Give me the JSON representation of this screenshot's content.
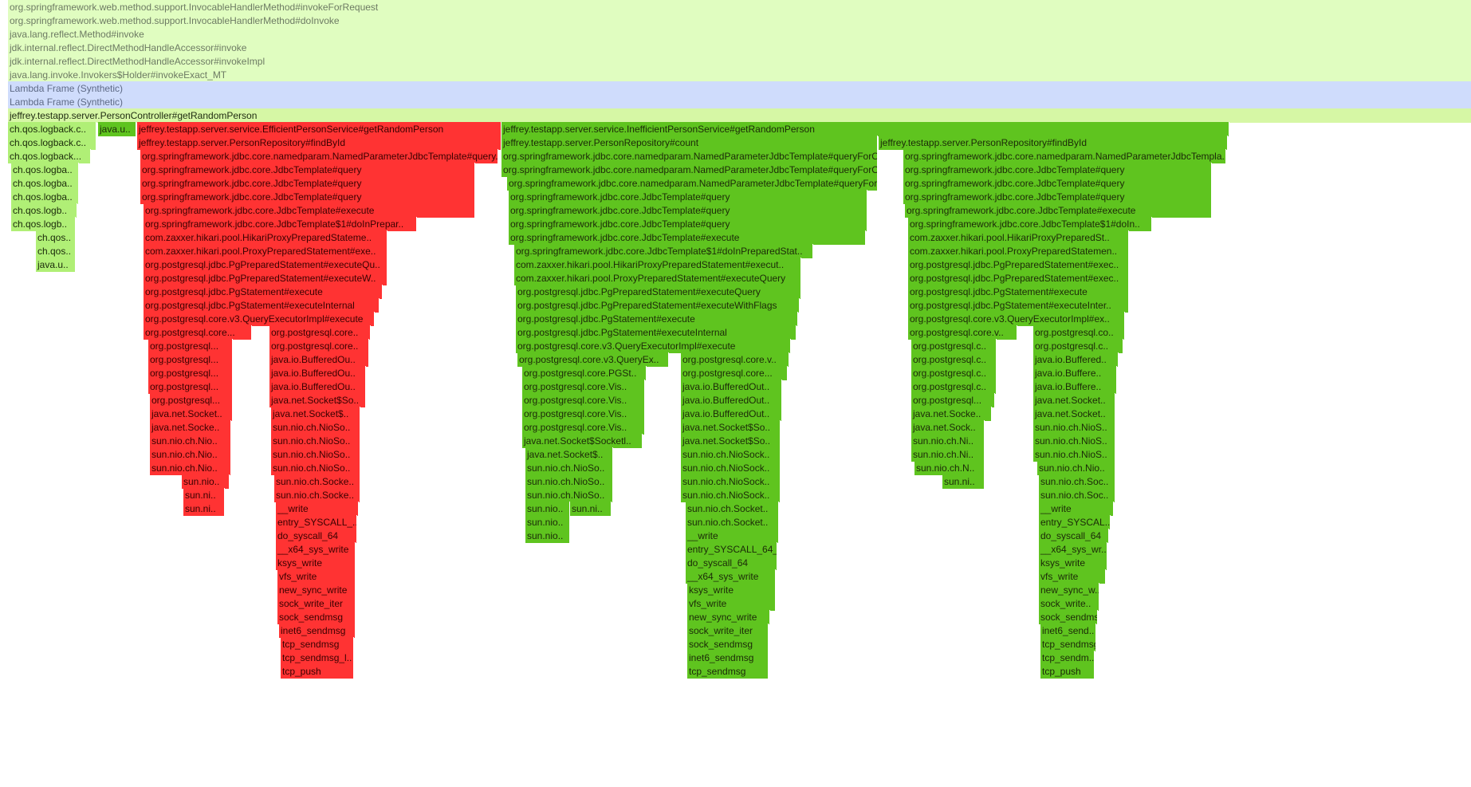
{
  "colors": {
    "background": "#ffffff",
    "filtered": "#e0fdc0",
    "synthetic": "#cfdcfc",
    "controller": "#d6f7a5",
    "logback": "#b0ef76",
    "inefficient_path": "#5fc41f",
    "efficient_path": "#ff3333"
  },
  "frames": [
    {
      "text": "org.springframework.web.method.support.InvocableHandlerMethod#invokeForRequest",
      "c": "light"
    },
    {
      "text": "org.springframework.web.method.support.InvocableHandlerMethod#doInvoke",
      "c": "light"
    },
    {
      "text": "java.lang.reflect.Method#invoke",
      "c": "light"
    },
    {
      "text": "jdk.internal.reflect.DirectMethodHandleAccessor#invoke",
      "c": "light"
    },
    {
      "text": "jdk.internal.reflect.DirectMethodHandleAccessor#invokeImpl",
      "c": "light"
    },
    {
      "text": "java.lang.invoke.Invokers$Holder#invokeExact_MT",
      "c": "light"
    },
    {
      "text": "Lambda Frame (Synthetic)",
      "c": "blue"
    },
    {
      "text": "Lambda Frame (Synthetic)",
      "c": "blue"
    },
    {
      "text": "jeffrey.testapp.server.PersonController#getRandomPerson",
      "c": "lime"
    },
    {
      "text": "ch.qos.logback.c..",
      "c": "lgreen"
    },
    {
      "text": "java.u..",
      "c": "green"
    },
    {
      "text": "jeffrey.testapp.server.service.EfficientPersonService#getRandomPerson",
      "c": "red"
    },
    {
      "text": "jeffrey.testapp.server.service.InefficientPersonService#getRandomPerson",
      "c": "green"
    },
    {
      "text": "ch.qos.logback.c..",
      "c": "lgreen"
    },
    {
      "text": "jeffrey.testapp.server.PersonRepository#findById",
      "c": "red"
    },
    {
      "text": "jeffrey.testapp.server.PersonRepository#count",
      "c": "green"
    },
    {
      "text": "jeffrey.testapp.server.PersonRepository#findById",
      "c": "green"
    },
    {
      "text": "ch.qos.logback...",
      "c": "lgreen"
    },
    {
      "text": "org.springframework.jdbc.core.namedparam.NamedParameterJdbcTemplate#query..",
      "c": "red"
    },
    {
      "text": "org.springframework.jdbc.core.namedparam.NamedParameterJdbcTemplate#queryForO..",
      "c": "green"
    },
    {
      "text": "org.springframework.jdbc.core.namedparam.NamedParameterJdbcTempla..",
      "c": "green"
    },
    {
      "text": "ch.qos.logba..",
      "c": "lgreen"
    },
    {
      "text": "org.springframework.jdbc.core.JdbcTemplate#query",
      "c": "red"
    },
    {
      "text": "org.springframework.jdbc.core.namedparam.NamedParameterJdbcTemplate#queryForO..",
      "c": "green"
    },
    {
      "text": "org.springframework.jdbc.core.JdbcTemplate#query",
      "c": "green"
    },
    {
      "text": "ch.qos.logba..",
      "c": "lgreen"
    },
    {
      "text": "org.springframework.jdbc.core.JdbcTemplate#query",
      "c": "red"
    },
    {
      "text": "org.springframework.jdbc.core.namedparam.NamedParameterJdbcTemplate#queryFor..",
      "c": "green"
    },
    {
      "text": "org.springframework.jdbc.core.JdbcTemplate#query",
      "c": "green"
    },
    {
      "text": "ch.qos.logba..",
      "c": "lgreen"
    },
    {
      "text": "org.springframework.jdbc.core.JdbcTemplate#query",
      "c": "red"
    },
    {
      "text": "org.springframework.jdbc.core.JdbcTemplate#query",
      "c": "green"
    },
    {
      "text": "org.springframework.jdbc.core.JdbcTemplate#query",
      "c": "green"
    },
    {
      "text": "ch.qos.logb..",
      "c": "lgreen"
    },
    {
      "text": "org.springframework.jdbc.core.JdbcTemplate#execute",
      "c": "red"
    },
    {
      "text": "org.springframework.jdbc.core.JdbcTemplate#query",
      "c": "green"
    },
    {
      "text": "org.springframework.jdbc.core.JdbcTemplate#execute",
      "c": "green"
    },
    {
      "text": "ch.qos.logb..",
      "c": "lgreen"
    },
    {
      "text": "org.springframework.jdbc.core.JdbcTemplate$1#doInPrepar..",
      "c": "red"
    },
    {
      "text": "org.springframework.jdbc.core.JdbcTemplate#query",
      "c": "green"
    },
    {
      "text": "org.springframework.jdbc.core.JdbcTemplate$1#doIn..",
      "c": "green"
    },
    {
      "text": "ch.qos..",
      "c": "lgreen"
    },
    {
      "text": "com.zaxxer.hikari.pool.HikariProxyPreparedStateme..",
      "c": "red"
    },
    {
      "text": "org.springframework.jdbc.core.JdbcTemplate#execute",
      "c": "green"
    },
    {
      "text": "com.zaxxer.hikari.pool.HikariProxyPreparedSt..",
      "c": "green"
    },
    {
      "text": "ch.qos..",
      "c": "lgreen"
    },
    {
      "text": "com.zaxxer.hikari.pool.ProxyPreparedStatement#exe..",
      "c": "red"
    },
    {
      "text": "org.springframework.jdbc.core.JdbcTemplate$1#doInPreparedStat..",
      "c": "green"
    },
    {
      "text": "com.zaxxer.hikari.pool.ProxyPreparedStatemen..",
      "c": "green"
    },
    {
      "text": "java.u..",
      "c": "lgreen"
    },
    {
      "text": "org.postgresql.jdbc.PgPreparedStatement#executeQu..",
      "c": "red"
    },
    {
      "text": "com.zaxxer.hikari.pool.HikariProxyPreparedStatement#execut..",
      "c": "green"
    },
    {
      "text": "org.postgresql.jdbc.PgPreparedStatement#exec..",
      "c": "green"
    },
    {
      "text": "org.postgresql.jdbc.PgPreparedStatement#executeW..",
      "c": "red"
    },
    {
      "text": "com.zaxxer.hikari.pool.ProxyPreparedStatement#executeQuery",
      "c": "green"
    },
    {
      "text": "org.postgresql.jdbc.PgPreparedStatement#exec..",
      "c": "green"
    },
    {
      "text": "org.postgresql.jdbc.PgStatement#execute",
      "c": "red"
    },
    {
      "text": "org.postgresql.jdbc.PgPreparedStatement#executeQuery",
      "c": "green"
    },
    {
      "text": "org.postgresql.jdbc.PgStatement#execute",
      "c": "green"
    },
    {
      "text": "org.postgresql.jdbc.PgStatement#executeInternal",
      "c": "red"
    },
    {
      "text": "org.postgresql.jdbc.PgPreparedStatement#executeWithFlags",
      "c": "green"
    },
    {
      "text": "org.postgresql.jdbc.PgStatement#executeInter..",
      "c": "green"
    },
    {
      "text": "org.postgresql.core.v3.QueryExecutorImpl#execute",
      "c": "red"
    },
    {
      "text": "org.postgresql.jdbc.PgStatement#execute",
      "c": "green"
    },
    {
      "text": "org.postgresql.core.v3.QueryExecutorImpl#ex..",
      "c": "green"
    },
    {
      "text": "org.postgresql.core...",
      "c": "red"
    },
    {
      "text": "org.postgresql.core..",
      "c": "red"
    },
    {
      "text": "org.postgresql.jdbc.PgStatement#executeInternal",
      "c": "green"
    },
    {
      "text": "org.postgresql.core.v..",
      "c": "green"
    },
    {
      "text": "org.postgresql.co..",
      "c": "green"
    },
    {
      "text": "org.postgresql...",
      "c": "red"
    },
    {
      "text": "org.postgresql.core..",
      "c": "red"
    },
    {
      "text": "org.postgresql.core.v3.QueryExecutorImpl#execute",
      "c": "green"
    },
    {
      "text": "org.postgresql.c..",
      "c": "green"
    },
    {
      "text": "org.postgresql.c..",
      "c": "green"
    },
    {
      "text": "org.postgresql...",
      "c": "red"
    },
    {
      "text": "java.io.BufferedOu..",
      "c": "red"
    },
    {
      "text": "org.postgresql.core.v3.QueryEx..",
      "c": "green"
    },
    {
      "text": "org.postgresql.core.v..",
      "c": "green"
    },
    {
      "text": "org.postgresql.c..",
      "c": "green"
    },
    {
      "text": "java.io.Buffered..",
      "c": "green"
    },
    {
      "text": "org.postgresql...",
      "c": "red"
    },
    {
      "text": "java.io.BufferedOu..",
      "c": "red"
    },
    {
      "text": "org.postgresql.core.PGSt..",
      "c": "green"
    },
    {
      "text": "org.postgresql.core...",
      "c": "green"
    },
    {
      "text": "org.postgresql.c..",
      "c": "green"
    },
    {
      "text": "java.io.Buffere..",
      "c": "green"
    },
    {
      "text": "org.postgresql...",
      "c": "red"
    },
    {
      "text": "java.io.BufferedOu..",
      "c": "red"
    },
    {
      "text": "org.postgresql.core.Vis..",
      "c": "green"
    },
    {
      "text": "java.io.BufferedOut..",
      "c": "green"
    },
    {
      "text": "org.postgresql.c..",
      "c": "green"
    },
    {
      "text": "java.io.Buffere..",
      "c": "green"
    },
    {
      "text": "org.postgresql...",
      "c": "red"
    },
    {
      "text": "java.net.Socket$So..",
      "c": "red"
    },
    {
      "text": "org.postgresql.core.Vis..",
      "c": "green"
    },
    {
      "text": "java.io.BufferedOut..",
      "c": "green"
    },
    {
      "text": "org.postgresql...",
      "c": "green"
    },
    {
      "text": "java.net.Socket..",
      "c": "green"
    },
    {
      "text": "java.net.Socket..",
      "c": "red"
    },
    {
      "text": "java.net.Socket$..",
      "c": "red"
    },
    {
      "text": "org.postgresql.core.Vis..",
      "c": "green"
    },
    {
      "text": "java.io.BufferedOut..",
      "c": "green"
    },
    {
      "text": "java.net.Socke..",
      "c": "green"
    },
    {
      "text": "java.net.Socket..",
      "c": "green"
    },
    {
      "text": "java.net.Socke..",
      "c": "red"
    },
    {
      "text": "sun.nio.ch.NioSo..",
      "c": "red"
    },
    {
      "text": "org.postgresql.core.Vis..",
      "c": "green"
    },
    {
      "text": "java.net.Socket$So..",
      "c": "green"
    },
    {
      "text": "java.net.Sock..",
      "c": "green"
    },
    {
      "text": "sun.nio.ch.NioS..",
      "c": "green"
    },
    {
      "text": "sun.nio.ch.Nio..",
      "c": "red"
    },
    {
      "text": "sun.nio.ch.NioSo..",
      "c": "red"
    },
    {
      "text": "java.net.Socket$Socketl..",
      "c": "green"
    },
    {
      "text": "java.net.Socket$So..",
      "c": "green"
    },
    {
      "text": "sun.nio.ch.Ni..",
      "c": "green"
    },
    {
      "text": "sun.nio.ch.NioS..",
      "c": "green"
    },
    {
      "text": "sun.nio.ch.Nio..",
      "c": "red"
    },
    {
      "text": "sun.nio.ch.NioSo..",
      "c": "red"
    },
    {
      "text": "java.net.Socket$..",
      "c": "green"
    },
    {
      "text": "sun.nio.ch.NioSock..",
      "c": "green"
    },
    {
      "text": "sun.nio.ch.Ni..",
      "c": "green"
    },
    {
      "text": "sun.nio.ch.NioS..",
      "c": "green"
    },
    {
      "text": "sun.nio.ch.Nio..",
      "c": "red"
    },
    {
      "text": "sun.nio.ch.NioSo..",
      "c": "red"
    },
    {
      "text": "sun.nio.ch.NioSo..",
      "c": "green"
    },
    {
      "text": "sun.nio.ch.NioSock..",
      "c": "green"
    },
    {
      "text": "sun.nio.ch.N..",
      "c": "green"
    },
    {
      "text": "sun.nio.ch.Nio..",
      "c": "green"
    },
    {
      "text": "sun.nio..",
      "c": "red"
    },
    {
      "text": "sun.nio.ch.Socke..",
      "c": "red"
    },
    {
      "text": "sun.nio.ch.NioSo..",
      "c": "green"
    },
    {
      "text": "sun.nio.ch.NioSock..",
      "c": "green"
    },
    {
      "text": "sun.ni..",
      "c": "green"
    },
    {
      "text": "sun.nio.ch.Soc..",
      "c": "green"
    },
    {
      "text": "sun.ni..",
      "c": "red"
    },
    {
      "text": "sun.nio.ch.Socke..",
      "c": "red"
    },
    {
      "text": "sun.nio.ch.NioSo..",
      "c": "green"
    },
    {
      "text": "sun.nio.ch.NioSock..",
      "c": "green"
    },
    {
      "text": "sun.nio.ch.Soc..",
      "c": "green"
    },
    {
      "text": "sun.ni..",
      "c": "red"
    },
    {
      "text": "__write",
      "c": "red"
    },
    {
      "text": "sun.nio..",
      "c": "green"
    },
    {
      "text": "sun.ni..",
      "c": "green"
    },
    {
      "text": "sun.nio.ch.Socket..",
      "c": "green"
    },
    {
      "text": "__write",
      "c": "green"
    },
    {
      "text": "entry_SYSCALL_..",
      "c": "red"
    },
    {
      "text": "sun.nio..",
      "c": "green"
    },
    {
      "text": "sun.nio.ch.Socket..",
      "c": "green"
    },
    {
      "text": "entry_SYSCAL..",
      "c": "green"
    },
    {
      "text": "do_syscall_64",
      "c": "red"
    },
    {
      "text": "sun.nio..",
      "c": "green"
    },
    {
      "text": "__write",
      "c": "green"
    },
    {
      "text": "do_syscall_64",
      "c": "green"
    },
    {
      "text": "__x64_sys_write",
      "c": "red"
    },
    {
      "text": "entry_SYSCALL_64_..",
      "c": "green"
    },
    {
      "text": "__x64_sys_wr..",
      "c": "green"
    },
    {
      "text": "ksys_write",
      "c": "red"
    },
    {
      "text": "do_syscall_64",
      "c": "green"
    },
    {
      "text": "ksys_write",
      "c": "green"
    },
    {
      "text": "vfs_write",
      "c": "red"
    },
    {
      "text": "__x64_sys_write",
      "c": "green"
    },
    {
      "text": "vfs_write",
      "c": "green"
    },
    {
      "text": "new_sync_write",
      "c": "red"
    },
    {
      "text": "ksys_write",
      "c": "green"
    },
    {
      "text": "new_sync_w..",
      "c": "green"
    },
    {
      "text": "sock_write_iter",
      "c": "red"
    },
    {
      "text": "vfs_write",
      "c": "green"
    },
    {
      "text": "sock_write..",
      "c": "green"
    },
    {
      "text": "sock_sendmsg",
      "c": "red"
    },
    {
      "text": "new_sync_write",
      "c": "green"
    },
    {
      "text": "sock_sendmsg",
      "c": "green"
    },
    {
      "text": "inet6_sendmsg",
      "c": "red"
    },
    {
      "text": "sock_write_iter",
      "c": "green"
    },
    {
      "text": "inet6_send..",
      "c": "green"
    },
    {
      "text": "tcp_sendmsg",
      "c": "red"
    },
    {
      "text": "sock_sendmsg",
      "c": "green"
    },
    {
      "text": "tcp_sendmsg",
      "c": "green"
    },
    {
      "text": "tcp_sendmsg_l..",
      "c": "red"
    },
    {
      "text": "inet6_sendmsg",
      "c": "green"
    },
    {
      "text": "tcp_sendm..",
      "c": "green"
    },
    {
      "text": "tcp_push",
      "c": "red"
    },
    {
      "text": "tcp_sendmsg",
      "c": "green"
    },
    {
      "text": "tcp_push",
      "c": "green"
    }
  ]
}
